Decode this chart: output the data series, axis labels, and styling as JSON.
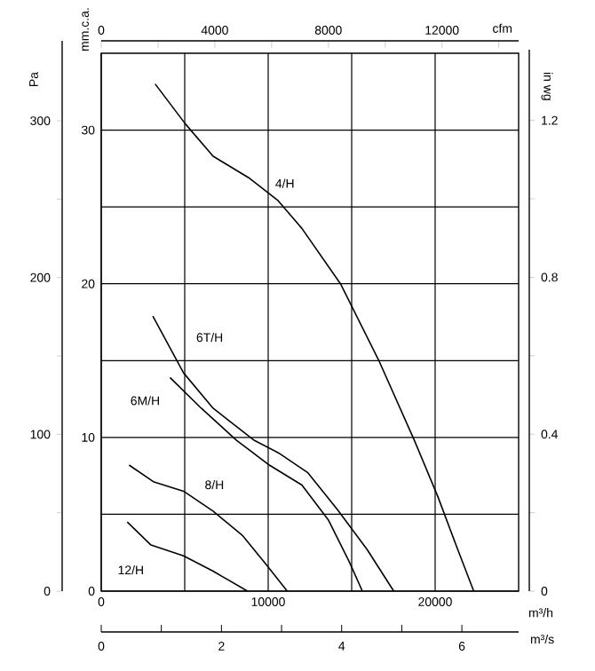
{
  "chart_data": {
    "type": "line",
    "xlabel": "m³/h",
    "ylabel": "mm.c.a.",
    "y2label": "Pa",
    "y3label": "in wg",
    "x2label": "cfm",
    "xlim": [
      0,
      25000
    ],
    "xticks": [
      0,
      {
        "value": 5000,
        "label": null
      },
      10000,
      {
        "value": 15000,
        "label": null
      },
      20000
    ],
    "ylim": [
      0,
      35
    ],
    "yticks": [
      0,
      {
        "value": 5,
        "label": null
      },
      10,
      {
        "value": 15,
        "label": null
      },
      20,
      {
        "value": 25,
        "label": null
      },
      30
    ],
    "y2lim": [
      0,
      351
    ],
    "y2ticks": [
      0,
      {
        "value": 50,
        "label": null
      },
      100,
      {
        "value": 150,
        "label": null
      },
      200,
      {
        "value": 250,
        "label": null
      },
      300
    ],
    "y3lim": [
      0,
      1.38
    ],
    "y3ticks": [
      0,
      {
        "value": 0.2,
        "label": null
      },
      0.4,
      {
        "value": 0.6,
        "label": null
      },
      0.8,
      {
        "value": 1.0,
        "label": null
      },
      1.2
    ],
    "x2lim": [
      0,
      14700
    ],
    "x2ticks": [
      0,
      {
        "value": 2000,
        "label": null
      },
      4000,
      {
        "value": 6000,
        "label": null
      },
      8000,
      {
        "value": 10000,
        "label": null
      },
      12000,
      {
        "value": 14000,
        "label": null
      }
    ],
    "grid": true,
    "marker": "none",
    "series": [
      {
        "name": "4/H",
        "color": "#000000",
        "x": [
          3230,
          5040,
          6700,
          8830,
          10600,
          12020,
          14330,
          16630,
          18760,
          20180,
          21250,
          22310
        ],
        "values": [
          33.0,
          30.4,
          28.3,
          26.9,
          25.4,
          23.6,
          20.0,
          15.0,
          9.8,
          6.1,
          3.0,
          0
        ]
      },
      {
        "name": "6T/H",
        "color": "#000000",
        "x": [
          3090,
          4930,
          6700,
          9180,
          10610,
          12380,
          14150,
          15930,
          17520
        ],
        "values": [
          17.9,
          14.2,
          11.9,
          9.8,
          9.0,
          7.7,
          5.3,
          2.7,
          0
        ]
      },
      {
        "name": "6M/H",
        "color": "#000000",
        "x": [
          4120,
          5990,
          8120,
          10070,
          12020,
          13620,
          14860,
          15640
        ],
        "values": [
          13.9,
          11.9,
          9.8,
          8.2,
          6.9,
          4.6,
          1.9,
          0
        ]
      },
      {
        "name": "8/H",
        "color": "#000000",
        "x": [
          1670,
          3160,
          4930,
          6700,
          8480,
          9900,
          11140
        ],
        "values": [
          8.2,
          7.1,
          6.5,
          5.2,
          3.6,
          1.7,
          0
        ]
      },
      {
        "name": "12/H",
        "color": "#000000",
        "x": [
          1560,
          2980,
          4930,
          6700,
          8760
        ],
        "values": [
          4.5,
          3.0,
          2.3,
          1.3,
          0
        ]
      }
    ],
    "annotations": [
      "0",
      "2",
      "4",
      "6",
      "m³/s"
    ]
  }
}
